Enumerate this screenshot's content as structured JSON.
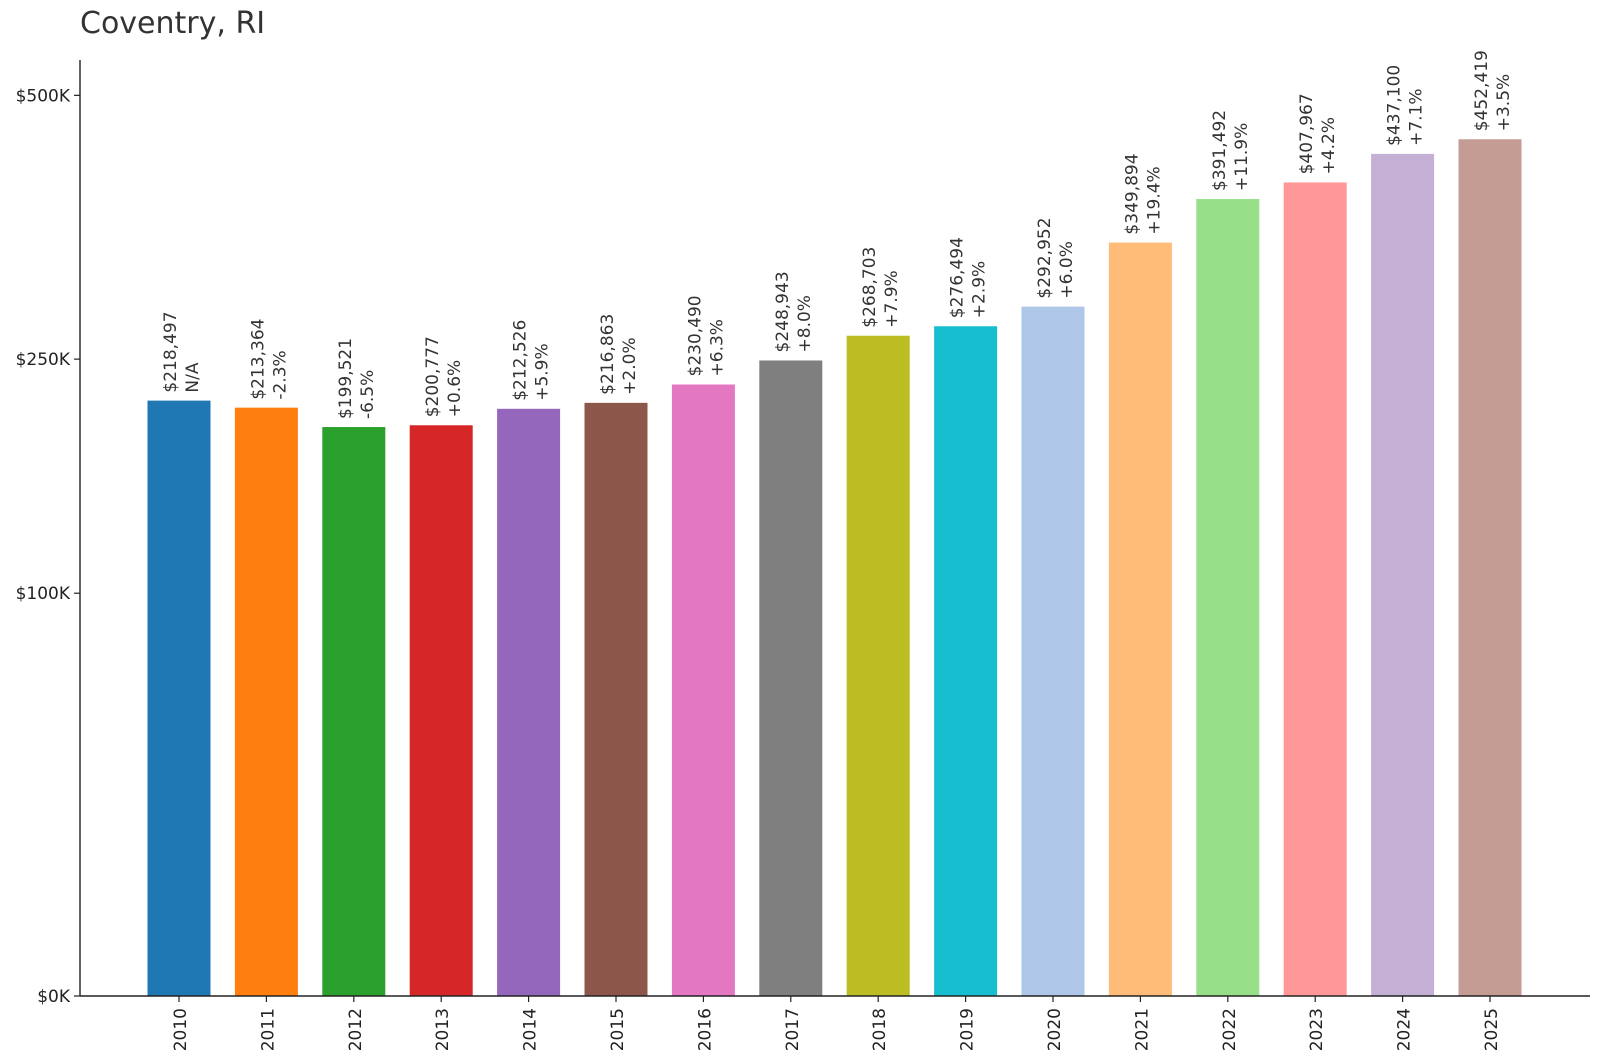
{
  "chart_data": {
    "type": "bar",
    "title": "Coventry, RI",
    "xlabel": "",
    "ylabel": "",
    "ylim": [
      0,
      540000
    ],
    "yscale": "sqrt",
    "yticks": [
      {
        "value": 0,
        "label": "$0K"
      },
      {
        "value": 100000,
        "label": "$100K"
      },
      {
        "value": 250000,
        "label": "$250K"
      },
      {
        "value": 500000,
        "label": "$500K"
      }
    ],
    "categories": [
      "2010",
      "2011",
      "2012",
      "2013",
      "2014",
      "2015",
      "2016",
      "2017",
      "2018",
      "2019",
      "2020",
      "2021",
      "2022",
      "2023",
      "2024",
      "2025"
    ],
    "values": [
      218497,
      213364,
      199521,
      200777,
      212526,
      216863,
      230490,
      248943,
      268703,
      276494,
      292952,
      349894,
      391492,
      407967,
      437100,
      452419
    ],
    "value_labels": [
      "$218,497",
      "$213,364",
      "$199,521",
      "$200,777",
      "$212,526",
      "$216,863",
      "$230,490",
      "$248,943",
      "$268,703",
      "$276,494",
      "$292,952",
      "$349,894",
      "$391,492",
      "$407,967",
      "$437,100",
      "$452,419"
    ],
    "change_labels": [
      "N/A",
      "-2.3%",
      "-6.5%",
      "+0.6%",
      "+5.9%",
      "+2.0%",
      "+6.3%",
      "+8.0%",
      "+7.9%",
      "+2.9%",
      "+6.0%",
      "+19.4%",
      "+11.9%",
      "+4.2%",
      "+7.1%",
      "+3.5%"
    ],
    "colors": [
      "#1f77b4",
      "#ff7f0e",
      "#2ca02c",
      "#d62728",
      "#9467bd",
      "#8c564b",
      "#e377c2",
      "#7f7f7f",
      "#bcbd22",
      "#17becf",
      "#aec7e8",
      "#ffbb78",
      "#98df8a",
      "#ff9896",
      "#c5b0d5",
      "#c49c94"
    ]
  }
}
